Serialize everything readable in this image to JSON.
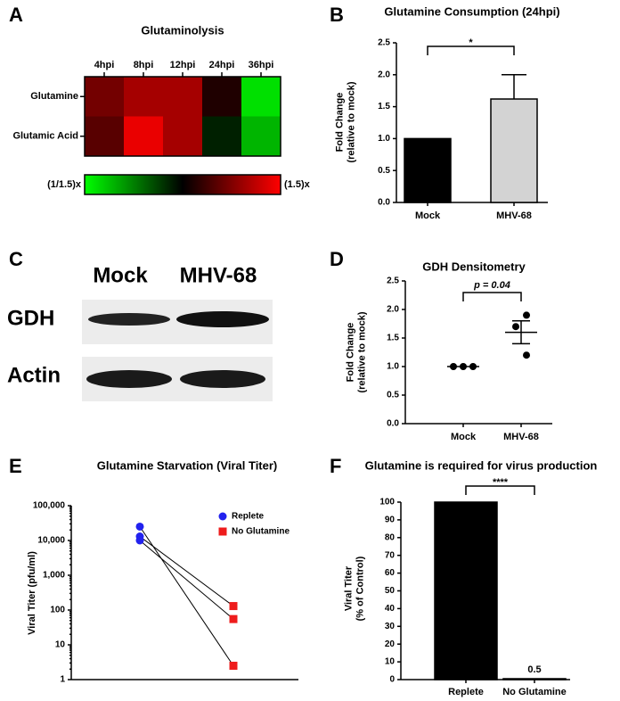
{
  "panel_labels": [
    "A",
    "B",
    "C",
    "D",
    "E",
    "F"
  ],
  "blot": {
    "columns": [
      "Mock",
      "MHV-68"
    ],
    "rows": [
      "GDH",
      "Actin"
    ]
  },
  "chart_data": [
    {
      "type": "heatmap",
      "title": "Glutaminolysis",
      "columns": [
        "4hpi",
        "8hpi",
        "12hpi",
        "24hpi",
        "36hpi"
      ],
      "rows": [
        "Glutamine",
        "Glutamic Acid"
      ],
      "values": [
        [
          1.2,
          1.3,
          1.3,
          1.05,
          0.7
        ],
        [
          1.15,
          1.45,
          1.3,
          0.95,
          0.75
        ]
      ],
      "zlim": [
        0.6667,
        1.5
      ],
      "zscale": "log",
      "colors": [
        "#00ff00",
        "#000000",
        "#ff0000"
      ],
      "colorbar_ticks": [
        {
          "value": 0.6667,
          "label": "(1/1.5)x"
        },
        {
          "value": 1.5,
          "label": "(1.5)x"
        }
      ]
    },
    {
      "type": "bar",
      "title": "Glutamine Consumption (24hpi)",
      "ylabel": [
        "Fold Change",
        "(relative to mock)"
      ],
      "categories": [
        "Mock",
        "MHV-68"
      ],
      "values": [
        1.0,
        1.62
      ],
      "errors": [
        null,
        0.38
      ],
      "colors": [
        "#000000",
        "#d3d3d3"
      ],
      "ylim": [
        0,
        2.5
      ],
      "yticks": [
        {
          "value": 0,
          "label": "0.0"
        },
        {
          "value": 0.5,
          "label": "0.5"
        },
        {
          "value": 1,
          "label": "1.0"
        },
        {
          "value": 1.5,
          "label": "1.5"
        },
        {
          "value": 2,
          "label": "2.0"
        },
        {
          "value": 2.5,
          "label": "2.5"
        }
      ],
      "annotation": "*"
    },
    {
      "type": "strip",
      "title": "GDH Densitometry",
      "ylabel": [
        "Fold Change",
        "(relative to mock)"
      ],
      "categories": [
        "Mock",
        "MHV-68"
      ],
      "points": [
        [
          1.0,
          1.0,
          1.0
        ],
        [
          1.9,
          1.7,
          1.2
        ]
      ],
      "means": [
        1.0,
        1.6
      ],
      "sem": [
        null,
        0.2
      ],
      "ylim": [
        0,
        2.5
      ],
      "yticks": [
        {
          "value": 0,
          "label": "0.0"
        },
        {
          "value": 0.5,
          "label": "0.5"
        },
        {
          "value": 1,
          "label": "1.0"
        },
        {
          "value": 1.5,
          "label": "1.5"
        },
        {
          "value": 2,
          "label": "2.0"
        },
        {
          "value": 2.5,
          "label": "2.5"
        }
      ],
      "annotation": "p = 0.04"
    },
    {
      "type": "line",
      "title": "Glutamine Starvation (Viral Titer)",
      "ylabel": [
        "Viral Titer (pfu/ml)"
      ],
      "yscale": "log",
      "ylim": [
        1,
        100000
      ],
      "yticks": [
        1,
        10,
        100,
        {
          "value": 1000,
          "label": "1,000"
        },
        {
          "value": 10000,
          "label": "10,000"
        },
        {
          "value": 100000,
          "label": "100,000"
        }
      ],
      "series": [
        {
          "name": "Replete",
          "color": "#2222ee",
          "marker": "circle",
          "values": [
            25000,
            13000,
            10000
          ]
        },
        {
          "name": "No Glutamine",
          "color": "#ee1c1c",
          "marker": "square",
          "values": [
            2.5,
            130,
            55
          ]
        }
      ],
      "legend": "upper right"
    },
    {
      "type": "bar",
      "title": "Glutamine is required for virus production",
      "ylabel": [
        "Viral Titer",
        "(% of Control)"
      ],
      "categories": [
        "Replete",
        "No Glutamine"
      ],
      "values": [
        100,
        0.5
      ],
      "value_labels": [
        null,
        "0.5"
      ],
      "colors": [
        "#000000",
        "#ffffff"
      ],
      "ylim": [
        0,
        100
      ],
      "yticks": [
        0,
        10,
        20,
        30,
        40,
        50,
        60,
        70,
        80,
        90,
        100
      ],
      "annotation": "****"
    }
  ]
}
